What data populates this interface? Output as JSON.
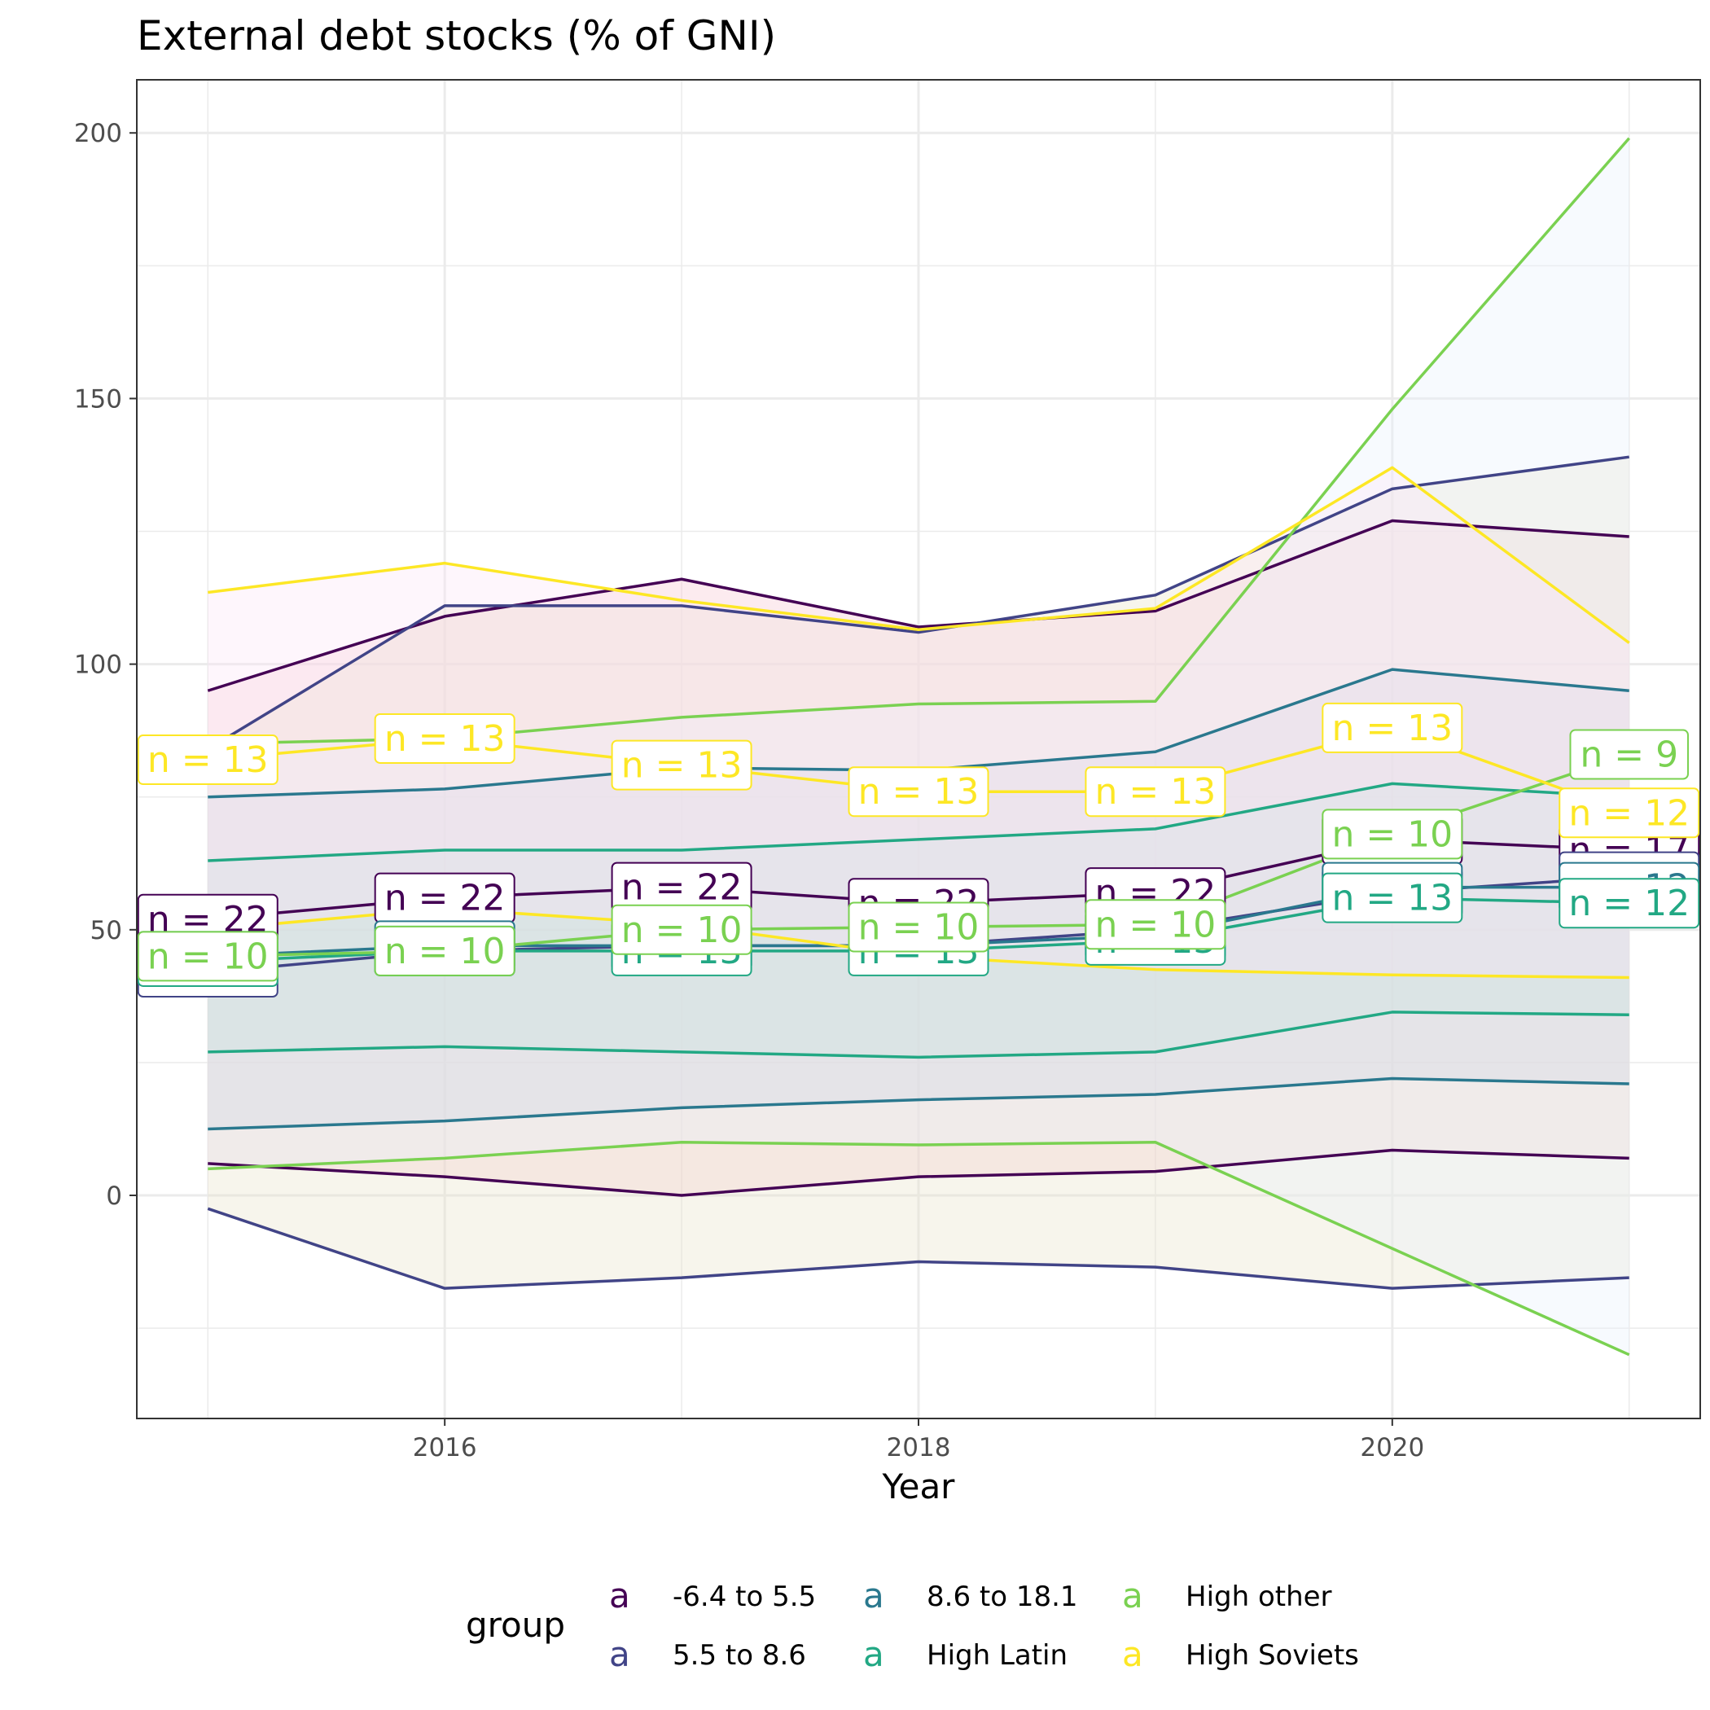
{
  "chart_data": {
    "type": "line",
    "title": "External debt stocks (% of GNI)",
    "xlabel": "Year",
    "ylabel": "",
    "x": [
      2015,
      2016,
      2017,
      2018,
      2019,
      2020,
      2021
    ],
    "x_ticks": [
      2016,
      2018,
      2020
    ],
    "y_ticks": [
      0,
      50,
      100,
      150,
      200
    ],
    "xlim": [
      2014.7,
      2021.3
    ],
    "ylim": [
      -42,
      210
    ],
    "grid": true,
    "legend": {
      "title": "group",
      "position": "bottom",
      "key_glyph": "a"
    },
    "series": [
      {
        "name": "-6.4 to 5.5",
        "color": "#440154",
        "band_color": "#f5c6d0",
        "mean": [
          52,
          56,
          58,
          55,
          57,
          67,
          65
        ],
        "upper": [
          95,
          109,
          116,
          107,
          110,
          127,
          124
        ],
        "lower": [
          6,
          3.5,
          0,
          3.5,
          4.5,
          8.5,
          7
        ],
        "labels": [
          "n = 22",
          "n = 22",
          "n = 22",
          "n = 22",
          "n = 22",
          "n = 20",
          "n = 17"
        ]
      },
      {
        "name": "5.5 to 8.6",
        "color": "#414487",
        "band_color": "#e9e3c8",
        "mean": [
          42,
          46,
          47,
          47,
          50,
          57,
          60
        ],
        "upper": [
          84,
          111,
          111,
          106,
          113,
          133,
          139
        ],
        "lower": [
          -2.5,
          -17.5,
          -15.5,
          -12.5,
          -13.5,
          -17.5,
          -15.5
        ],
        "labels": [
          "n = 20",
          "n = 22",
          "n = 23",
          "n = 22",
          "n = 22",
          "n = 20",
          "n = 22"
        ]
      },
      {
        "name": "8.6 to 18.1",
        "color": "#2A788E",
        "band_color": "#c5c9d6",
        "mean": [
          45,
          47,
          47,
          47,
          49,
          58,
          58
        ],
        "upper": [
          75,
          76.5,
          80.5,
          80,
          83.5,
          99,
          95
        ],
        "lower": [
          12.5,
          14,
          16.5,
          18,
          19,
          22,
          21
        ],
        "labels": [
          "n = 13",
          "n = 13",
          "n = 13",
          "n = 13",
          "n = 13",
          "n = 13",
          "n = 12"
        ]
      },
      {
        "name": "High Latin",
        "color": "#22A884",
        "band_color": "#b9dcd0",
        "mean": [
          44,
          46,
          46,
          46,
          48,
          56,
          55
        ],
        "upper": [
          63,
          65,
          65,
          67,
          69,
          77.5,
          75
        ],
        "lower": [
          27,
          28,
          27,
          26,
          27,
          34.5,
          34
        ],
        "labels": [
          "n = 13",
          "n = 13",
          "n = 13",
          "n = 13",
          "n = 13",
          "n = 13",
          "n = 12"
        ]
      },
      {
        "name": "High other",
        "color": "#7AD151",
        "band_color": "#e8f0fb",
        "mean": [
          45,
          46,
          50,
          50.5,
          51,
          68,
          83
        ],
        "upper": [
          85,
          86,
          90,
          92.5,
          93,
          148,
          199
        ],
        "lower": [
          5,
          7,
          10,
          9.5,
          10,
          -10,
          -30
        ],
        "labels": [
          "n = 10",
          "n = 10",
          "n = 10",
          "n = 10",
          "n = 10",
          "n = 10",
          "n = 9"
        ]
      },
      {
        "name": "High Soviets",
        "color": "#FDE725",
        "band_color": "#fbe6f6",
        "mean": [
          82,
          86,
          81,
          76,
          76,
          88,
          72
        ],
        "upper": [
          113.5,
          119,
          112,
          106.5,
          110.5,
          137,
          104
        ],
        "lower": [
          50,
          54,
          51,
          45,
          42.5,
          41.5,
          41
        ],
        "labels": [
          "n = 13",
          "n = 13",
          "n = 13",
          "n = 13",
          "n = 13",
          "n = 13",
          "n = 12"
        ]
      }
    ]
  }
}
